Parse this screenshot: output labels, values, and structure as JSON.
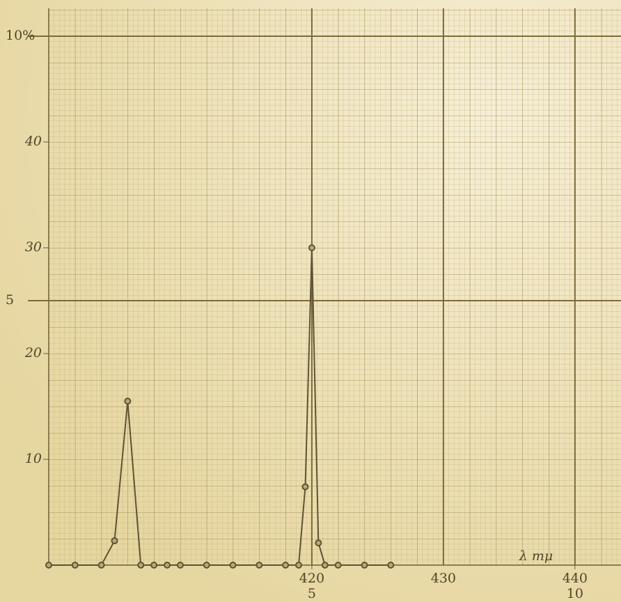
{
  "chart_data": {
    "type": "line",
    "x_label": "λ mμ",
    "xlim": [
      400,
      443.5
    ],
    "xticks": [
      420,
      430,
      440
    ],
    "x2lim": [
      0,
      10.875
    ],
    "x2ticks": [
      5,
      10
    ],
    "ylim": [
      0,
      50
    ],
    "yticks": [
      10,
      20,
      30,
      40
    ],
    "y2lim": [
      0,
      10
    ],
    "y2ticks": [
      5,
      {
        "value": 10,
        "label": "10%"
      }
    ],
    "grid": true,
    "series": [
      {
        "color": "#5d5435",
        "x": [
          400,
          402,
          404,
          405,
          406,
          407,
          408,
          409,
          410,
          412,
          414,
          416,
          418,
          419,
          419.5,
          420,
          420.5,
          421,
          422,
          424,
          426
        ],
        "values": [
          0,
          0,
          0,
          2.3,
          15.5,
          0,
          0,
          0,
          0,
          0,
          0,
          0,
          0,
          0,
          7.4,
          30,
          2.1,
          0,
          0,
          0,
          0
        ]
      }
    ]
  }
}
